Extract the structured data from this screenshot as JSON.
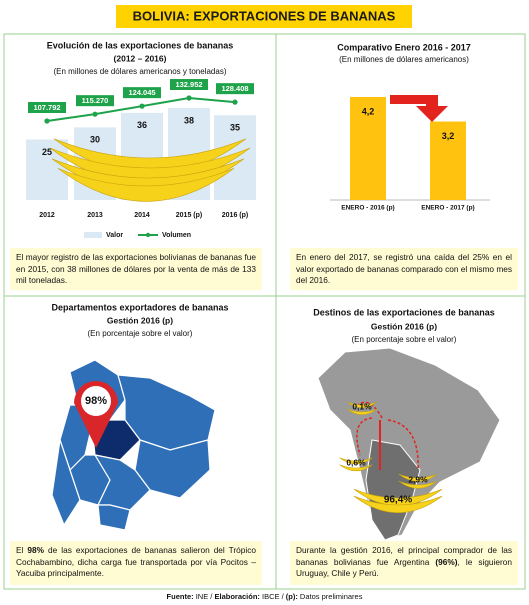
{
  "title": "BOLIVIA: EXPORTACIONES DE BANANAS",
  "chart_data": [
    {
      "type": "bar-line",
      "title": "Evolución de las exportaciones de bananas",
      "subtitle": "(2012 – 2016)",
      "units": "(En millones de dólares americanos y toneladas)",
      "categories": [
        "2012",
        "2013",
        "2014",
        "2015 (p)",
        "2016 (p)"
      ],
      "series": [
        {
          "name": "Valor",
          "color": "#dbe9f4",
          "values": [
            25,
            30,
            36,
            38,
            35
          ]
        },
        {
          "name": "Volumen",
          "color": "#1fa34a",
          "values": [
            107792,
            115270,
            124045,
            132952,
            128408
          ],
          "value_labels": [
            "107.792",
            "115.270",
            "124.045",
            "132.952",
            "128.408"
          ]
        }
      ]
    },
    {
      "type": "bar",
      "title": "Comparativo Enero 2016 - 2017",
      "units": "(En millones de dólares americanos)",
      "categories": [
        "ENERO - 2016 (p)",
        "ENERO - 2017 (p)"
      ],
      "values": [
        4.2,
        3.2
      ],
      "value_labels": [
        "4,2",
        "3,2"
      ],
      "color": "#ffc20e"
    },
    {
      "type": "map",
      "title": "Departamentos exportadores de bananas",
      "subtitle": "Gestión 2016 (p)",
      "units": "(En porcentaje sobre el valor)",
      "values": [
        98
      ],
      "value_labels": [
        "98%"
      ],
      "color": "#d9262b"
    },
    {
      "type": "map",
      "title": "Destinos de las exportaciones de bananas",
      "subtitle": "Gestión 2016 (p)",
      "units": "(En porcentaje sobre el valor)",
      "values": [
        0.1,
        0.6,
        2.9,
        96.4
      ],
      "value_labels": [
        "0,1%",
        "0,6%",
        "2,9%",
        "96,4%"
      ],
      "color": "#ffd200"
    }
  ],
  "notes": [
    [
      {
        "text": "El mayor registro de las  exportaciones bolivianas de bananas fue en 2015, con 38 millones de dólares por la venta de más de 133 mil toneladas."
      }
    ],
    [
      {
        "text": "En enero del 2017, se registró una caída del 25% en el valor exportado de bananas comparado con el mismo mes del 2016."
      }
    ],
    [
      {
        "text": "El "
      },
      {
        "text": "98%",
        "bold": true
      },
      {
        "text": " de las exportaciones de bananas salieron del Trópico Cochabambino, dicha carga fue transportada por vía Pocitos – Yacuiba principalmente."
      }
    ],
    [
      {
        "text": "Durante la gestión 2016, el principal comprador de las bananas bolivianas fue Argentina "
      },
      {
        "text": "(96%)",
        "bold": true
      },
      {
        "text": ", le siguieron Uruguay, Chile y Perú."
      }
    ]
  ],
  "footer": [
    {
      "text": "Fuente:",
      "bold": true
    },
    {
      "text": " INE  / "
    },
    {
      "text": "Elaboración:",
      "bold": true
    },
    {
      "text": " IBCE / "
    },
    {
      "text": "(p):",
      "bold": true
    },
    {
      "text": " Datos preliminares"
    }
  ]
}
